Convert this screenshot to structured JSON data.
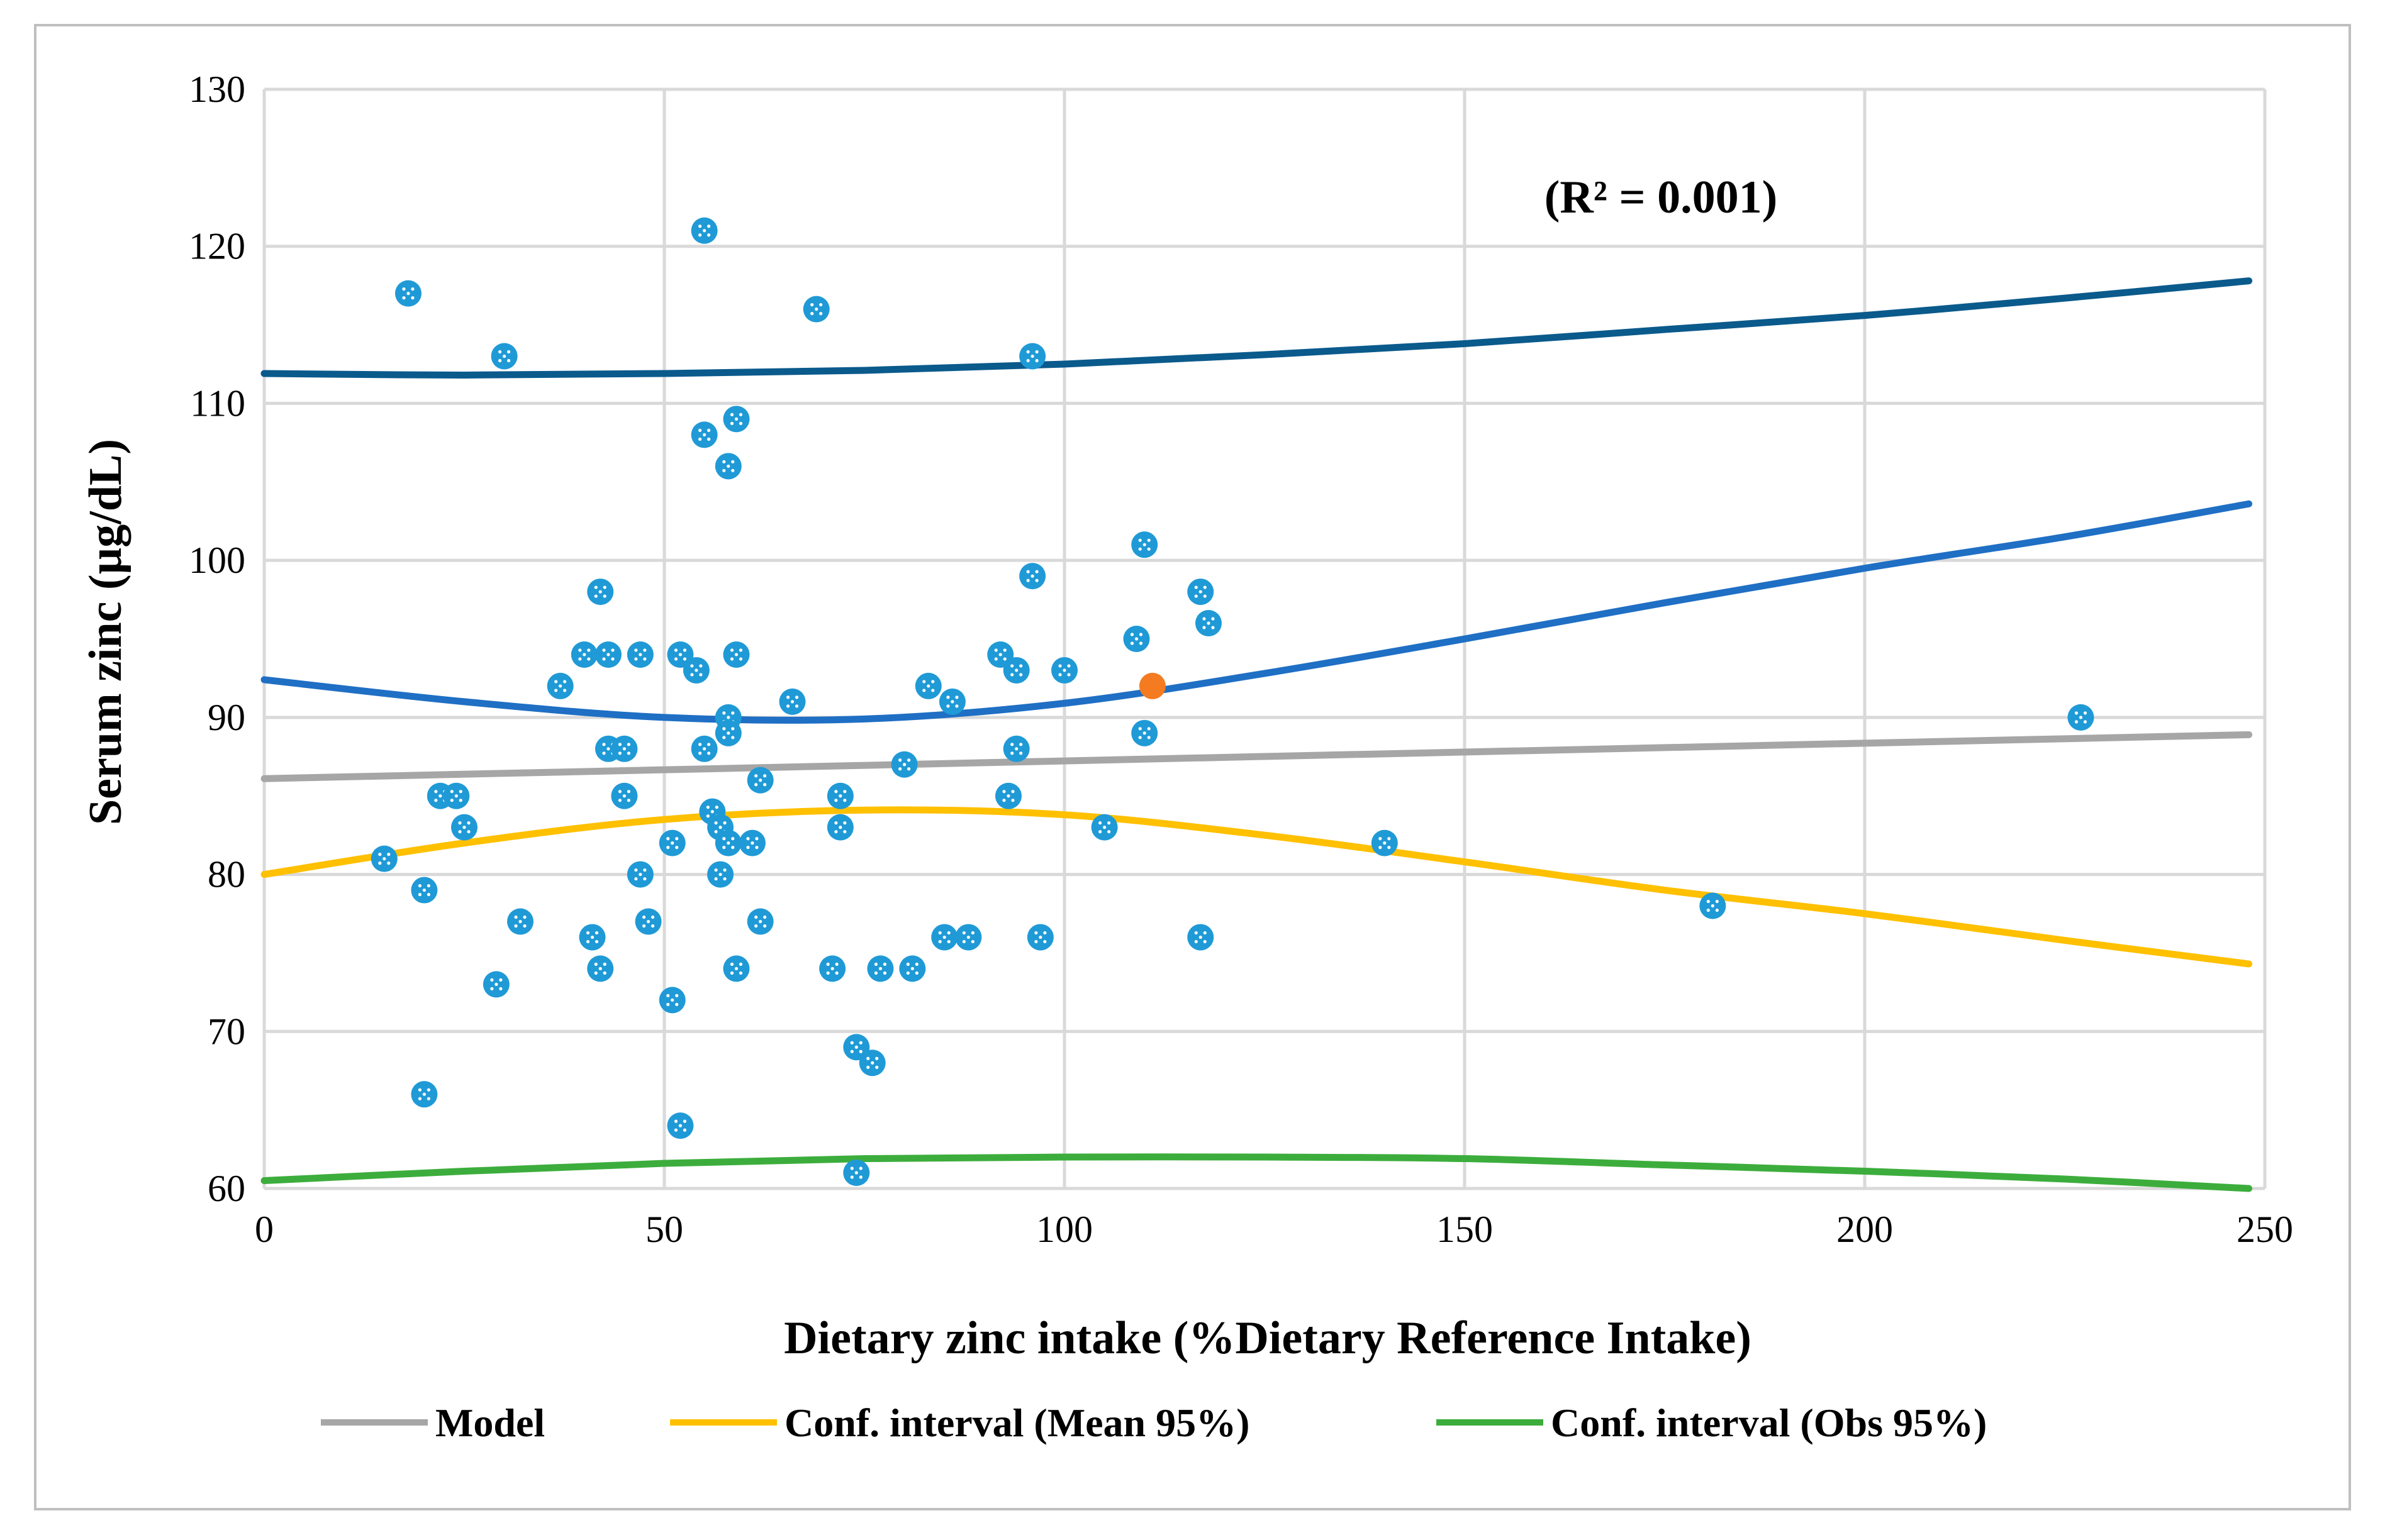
{
  "chart_data": {
    "type": "scatter",
    "title": "",
    "xlabel": "Dietary zinc intake (%Dietary Reference Intake)",
    "ylabel": "Serum zinc (µg/dL)",
    "xlim": [
      0,
      250
    ],
    "ylim": [
      60,
      130
    ],
    "x_ticks": [
      0,
      50,
      100,
      150,
      200,
      250
    ],
    "y_ticks": [
      60,
      70,
      80,
      90,
      100,
      110,
      120,
      130
    ],
    "grid": true,
    "legend_position": "bottom",
    "annotation": "(R² = 0.001)",
    "colors": {
      "points": "#1f9ad6",
      "highlight": "#f47b20",
      "model": "#a6a6a6",
      "mean_ci": "#ffc000",
      "obs_ci": "#3cad3c",
      "upper_obs": "#0a5a8c",
      "upper_mean": "#1f6fc4",
      "grid": "#d9d9d9",
      "frame": "#bfbfbf"
    },
    "points": [
      {
        "x": 18,
        "y": 117
      },
      {
        "x": 30,
        "y": 113
      },
      {
        "x": 55,
        "y": 121
      },
      {
        "x": 69,
        "y": 116
      },
      {
        "x": 96,
        "y": 113
      },
      {
        "x": 55,
        "y": 108
      },
      {
        "x": 59,
        "y": 109
      },
      {
        "x": 58,
        "y": 106
      },
      {
        "x": 110,
        "y": 101
      },
      {
        "x": 42,
        "y": 98
      },
      {
        "x": 96,
        "y": 99
      },
      {
        "x": 117,
        "y": 98
      },
      {
        "x": 118,
        "y": 96
      },
      {
        "x": 109,
        "y": 95
      },
      {
        "x": 37,
        "y": 92
      },
      {
        "x": 40,
        "y": 94
      },
      {
        "x": 43,
        "y": 94
      },
      {
        "x": 47,
        "y": 94
      },
      {
        "x": 52,
        "y": 94
      },
      {
        "x": 59,
        "y": 94
      },
      {
        "x": 92,
        "y": 94
      },
      {
        "x": 54,
        "y": 93
      },
      {
        "x": 94,
        "y": 93
      },
      {
        "x": 100,
        "y": 93
      },
      {
        "x": 83,
        "y": 92
      },
      {
        "x": 86,
        "y": 91
      },
      {
        "x": 66,
        "y": 91
      },
      {
        "x": 58,
        "y": 90
      },
      {
        "x": 58,
        "y": 89
      },
      {
        "x": 110,
        "y": 89
      },
      {
        "x": 227,
        "y": 90
      },
      {
        "x": 43,
        "y": 88
      },
      {
        "x": 45,
        "y": 88
      },
      {
        "x": 55,
        "y": 88
      },
      {
        "x": 94,
        "y": 88
      },
      {
        "x": 80,
        "y": 87
      },
      {
        "x": 62,
        "y": 86
      },
      {
        "x": 22,
        "y": 85
      },
      {
        "x": 24,
        "y": 85
      },
      {
        "x": 45,
        "y": 85
      },
      {
        "x": 72,
        "y": 85
      },
      {
        "x": 93,
        "y": 85
      },
      {
        "x": 56,
        "y": 84
      },
      {
        "x": 25,
        "y": 83
      },
      {
        "x": 57,
        "y": 83
      },
      {
        "x": 72,
        "y": 83
      },
      {
        "x": 105,
        "y": 83
      },
      {
        "x": 51,
        "y": 82
      },
      {
        "x": 58,
        "y": 82
      },
      {
        "x": 61,
        "y": 82
      },
      {
        "x": 140,
        "y": 82
      },
      {
        "x": 15,
        "y": 81
      },
      {
        "x": 47,
        "y": 80
      },
      {
        "x": 57,
        "y": 80
      },
      {
        "x": 20,
        "y": 79
      },
      {
        "x": 181,
        "y": 78
      },
      {
        "x": 32,
        "y": 77
      },
      {
        "x": 48,
        "y": 77
      },
      {
        "x": 62,
        "y": 77
      },
      {
        "x": 41,
        "y": 76
      },
      {
        "x": 85,
        "y": 76
      },
      {
        "x": 88,
        "y": 76
      },
      {
        "x": 97,
        "y": 76
      },
      {
        "x": 117,
        "y": 76
      },
      {
        "x": 42,
        "y": 74
      },
      {
        "x": 59,
        "y": 74
      },
      {
        "x": 71,
        "y": 74
      },
      {
        "x": 77,
        "y": 74
      },
      {
        "x": 81,
        "y": 74
      },
      {
        "x": 29,
        "y": 73
      },
      {
        "x": 51,
        "y": 72
      },
      {
        "x": 74,
        "y": 69
      },
      {
        "x": 76,
        "y": 68
      },
      {
        "x": 20,
        "y": 66
      },
      {
        "x": 52,
        "y": 64
      },
      {
        "x": 74,
        "y": 61
      }
    ],
    "highlight_point": {
      "x": 111,
      "y": 92
    },
    "series": [
      {
        "name": "Model",
        "x": [
          0,
          248
        ],
        "values": [
          86.1,
          88.9
        ]
      },
      {
        "name": "Conf. interval (Mean 95%)",
        "x": [
          0,
          25,
          50,
          75,
          100,
          125,
          150,
          175,
          200,
          225,
          248
        ],
        "values": [
          80.0,
          82.0,
          83.5,
          84.1,
          83.8,
          82.5,
          80.8,
          79.0,
          77.5,
          75.8,
          74.3
        ]
      },
      {
        "name": "Conf. interval (Obs 95%)",
        "x": [
          0,
          25,
          50,
          75,
          100,
          125,
          150,
          175,
          200,
          225,
          248
        ],
        "values": [
          60.5,
          61.1,
          61.6,
          61.9,
          62.0,
          62.0,
          61.9,
          61.5,
          61.1,
          60.6,
          60.0
        ]
      },
      {
        "name": "",
        "x": [
          0,
          25,
          50,
          75,
          100,
          125,
          150,
          175,
          200,
          225,
          248
        ],
        "values": [
          92.4,
          91.0,
          90.0,
          89.9,
          90.9,
          92.8,
          95.0,
          97.3,
          99.5,
          101.5,
          103.6
        ]
      },
      {
        "name": "",
        "x": [
          0,
          25,
          50,
          75,
          100,
          125,
          150,
          175,
          200,
          225,
          248
        ],
        "values": [
          111.9,
          111.8,
          111.9,
          112.1,
          112.5,
          113.1,
          113.8,
          114.7,
          115.6,
          116.7,
          117.8
        ]
      }
    ],
    "legend": [
      {
        "label": "Model",
        "color": "#a6a6a6"
      },
      {
        "label": "Conf. interval (Mean 95%)",
        "color": "#ffc000"
      },
      {
        "label": "Conf. interval (Obs 95%)",
        "color": "#3cad3c"
      }
    ]
  }
}
